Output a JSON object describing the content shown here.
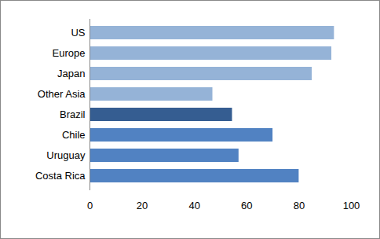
{
  "chart_data": {
    "type": "bar",
    "orientation": "horizontal",
    "categories": [
      "US",
      "Europe",
      "Japan",
      "Other Asia",
      "Brazil",
      "Chile",
      "Uruguay",
      "Costa Rica"
    ],
    "values": [
      93.5,
      92.5,
      85,
      47,
      54.5,
      70,
      57,
      80
    ],
    "colors": [
      "#95b3d7",
      "#95b3d7",
      "#95b3d7",
      "#95b3d7",
      "#355d91",
      "#5182c2",
      "#5182c2",
      "#5182c2"
    ],
    "xlim": [
      0,
      100
    ],
    "xticks": [
      0,
      20,
      40,
      60,
      80,
      100
    ],
    "grid": false
  }
}
